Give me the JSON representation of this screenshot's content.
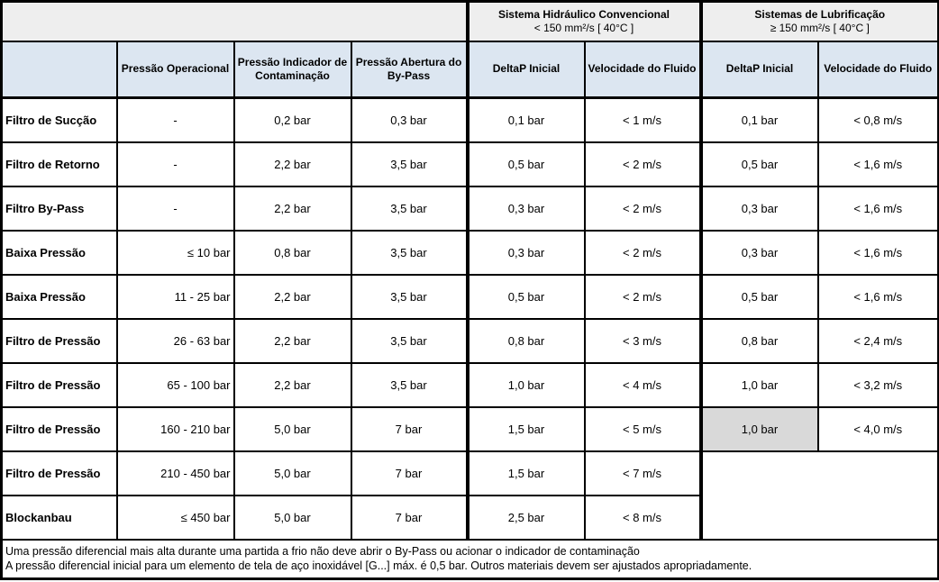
{
  "header": {
    "groups": [
      {
        "title": "Sistema Hidráulico Convencional",
        "subtitle": "< 150 mm²/s [ 40°C ]"
      },
      {
        "title": "Sistemas de Lubrificação",
        "subtitle": "≥ 150 mm²/s [ 40°C ]"
      }
    ],
    "columns": [
      "Pressão Operacional",
      "Pressão Indicador de Contaminação",
      "Pressão Abertura do By-Pass",
      "DeltaP Inicial",
      "Velocidade do Fluido",
      "DeltaP Inicial",
      "Velocidade do Fluido"
    ]
  },
  "rows": [
    {
      "label": "Filtro de Sucção",
      "op": "-",
      "indicador": "0,2 bar",
      "bypass": "0,3 bar",
      "conv_dp": "0,1 bar",
      "conv_vel": "< 1 m/s",
      "lub_dp": "0,1 bar",
      "lub_vel": "< 0,8 m/s",
      "lub_dp_highlight": false
    },
    {
      "label": "Filtro de Retorno",
      "op": "-",
      "indicador": "2,2 bar",
      "bypass": "3,5 bar",
      "conv_dp": "0,5 bar",
      "conv_vel": "< 2 m/s",
      "lub_dp": "0,5 bar",
      "lub_vel": "< 1,6 m/s",
      "lub_dp_highlight": false
    },
    {
      "label": "Filtro By-Pass",
      "op": "-",
      "indicador": "2,2 bar",
      "bypass": "3,5 bar",
      "conv_dp": "0,3 bar",
      "conv_vel": "< 2 m/s",
      "lub_dp": "0,3 bar",
      "lub_vel": "< 1,6 m/s",
      "lub_dp_highlight": false
    },
    {
      "label": "Baixa Pressão",
      "op": "≤ 10 bar",
      "indicador": "0,8 bar",
      "bypass": "3,5 bar",
      "conv_dp": "0,3 bar",
      "conv_vel": "< 2 m/s",
      "lub_dp": "0,3 bar",
      "lub_vel": "< 1,6 m/s",
      "lub_dp_highlight": false
    },
    {
      "label": "Baixa Pressão",
      "op": "11 - 25 bar",
      "indicador": "2,2 bar",
      "bypass": "3,5 bar",
      "conv_dp": "0,5 bar",
      "conv_vel": "< 2 m/s",
      "lub_dp": "0,5 bar",
      "lub_vel": "< 1,6 m/s",
      "lub_dp_highlight": false
    },
    {
      "label": "Filtro de Pressão",
      "op": "26 - 63 bar",
      "indicador": "2,2 bar",
      "bypass": "3,5 bar",
      "conv_dp": "0,8 bar",
      "conv_vel": "< 3 m/s",
      "lub_dp": "0,8 bar",
      "lub_vel": "< 2,4 m/s",
      "lub_dp_highlight": false
    },
    {
      "label": "Filtro de Pressão",
      "op": "65 - 100 bar",
      "indicador": "2,2 bar",
      "bypass": "3,5 bar",
      "conv_dp": "1,0 bar",
      "conv_vel": "< 4 m/s",
      "lub_dp": "1,0 bar",
      "lub_vel": "< 3,2 m/s",
      "lub_dp_highlight": false
    },
    {
      "label": "Filtro de Pressão",
      "op": "160 - 210 bar",
      "indicador": "5,0 bar",
      "bypass": "7 bar",
      "conv_dp": "1,5 bar",
      "conv_vel": "< 5 m/s",
      "lub_dp": "1,0 bar",
      "lub_vel": "< 4,0 m/s",
      "lub_dp_highlight": true
    },
    {
      "label": "Filtro de Pressão",
      "op": "210 - 450 bar",
      "indicador": "5,0 bar",
      "bypass": "7 bar",
      "conv_dp": "1,5 bar",
      "conv_vel": "< 7 m/s",
      "lub_merge_start": true
    },
    {
      "label": "Blockanbau",
      "op": "≤ 450 bar",
      "indicador": "5,0 bar",
      "bypass": "7 bar",
      "conv_dp": "2,5 bar",
      "conv_vel": "< 8 m/s",
      "lub_skip": true
    }
  ],
  "footnotes": [
    "Uma pressão diferencial mais alta durante uma partida a frio não deve abrir o By-Pass ou acionar o indicador de contaminação",
    "A pressão diferencial inicial para um elemento de tela de aço inoxidável [G...] máx. é 0,5 bar. Outros materiais devem ser ajustados apropriadamente."
  ],
  "colors": {
    "header_blue": "#dce6f1",
    "group_gray": "#eeeeee",
    "highlight_gray": "#d9d9d9",
    "border": "#000000"
  }
}
